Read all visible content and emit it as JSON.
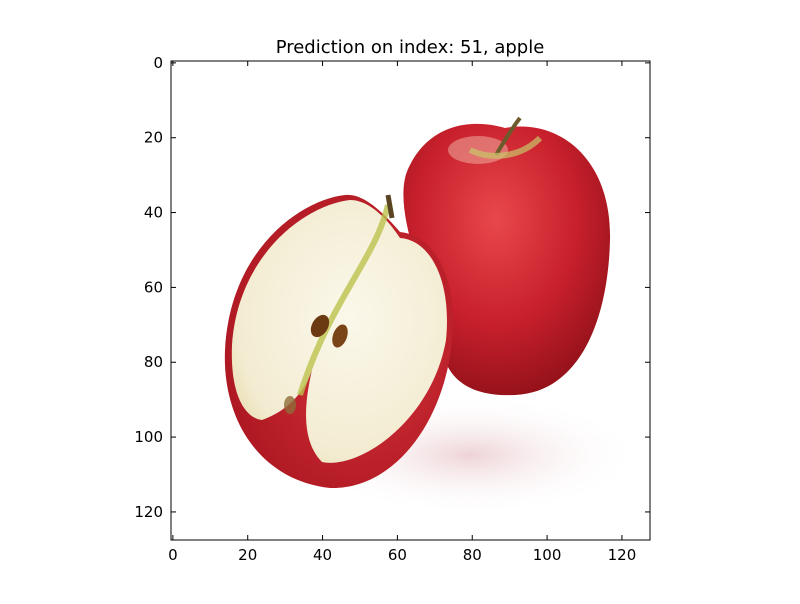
{
  "figure": {
    "title": "Prediction on index: 51, apple"
  },
  "image_axes": {
    "x_ticks": [
      0,
      20,
      40,
      60,
      80,
      100,
      120
    ],
    "y_ticks": [
      0,
      20,
      40,
      60,
      80,
      100,
      120
    ],
    "x_range": [
      0,
      127
    ],
    "y_range": [
      0,
      127
    ],
    "y_inverted": true
  },
  "image": {
    "subject": "apple",
    "colors": {
      "apple_red": "#c8202c",
      "apple_dark_red": "#8e1018",
      "flesh": "#f5f0dc",
      "core_green": "#b7c44a",
      "seed": "#6b3a12",
      "background": "#ffffff"
    }
  }
}
